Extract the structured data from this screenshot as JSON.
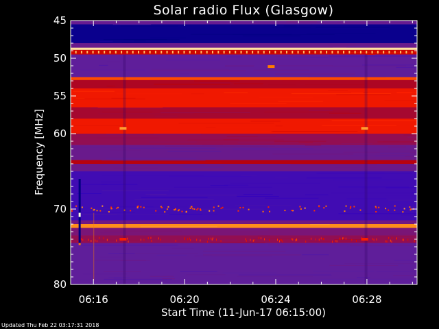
{
  "chart_data": {
    "type": "heatmap",
    "title": "Solar radio Flux (Glasgow)",
    "xlabel": "Start Time (11-Jun-17 06:15:00)",
    "ylabel": "Frequency [MHz]",
    "x_range_minutes": [
      0,
      15.2
    ],
    "ylim": [
      45,
      80
    ],
    "y_axis_inverted": true,
    "x_tick_labels": [
      "06:16",
      "06:20",
      "06:24",
      "06:28"
    ],
    "x_tick_minutes": [
      1,
      5,
      9,
      13
    ],
    "y_tick_labels": [
      "45",
      "50",
      "55",
      "60",
      "70",
      "80"
    ],
    "y_tick_values": [
      45,
      50,
      55,
      60,
      70,
      80
    ],
    "colormap": [
      "#000080",
      "#3000c0",
      "#5a1fa0",
      "#8a1060",
      "#c00000",
      "#ff2000",
      "#ff8000",
      "#ffe0a0"
    ],
    "bands": [
      {
        "from": 45.0,
        "to": 45.5,
        "level": 0.32
      },
      {
        "from": 45.5,
        "to": 48.0,
        "level": 0.03
      },
      {
        "from": 48.0,
        "to": 48.6,
        "level": 0.33
      },
      {
        "from": 48.6,
        "to": 48.9,
        "level": 1.0
      },
      {
        "from": 48.9,
        "to": 49.5,
        "level": 0.6
      },
      {
        "from": 49.5,
        "to": 52.5,
        "level": 0.3
      },
      {
        "from": 52.5,
        "to": 52.9,
        "level": 0.78
      },
      {
        "from": 52.9,
        "to": 54.0,
        "level": 0.52
      },
      {
        "from": 54.0,
        "to": 56.5,
        "level": 0.68
      },
      {
        "from": 56.5,
        "to": 58.0,
        "level": 0.5
      },
      {
        "from": 58.0,
        "to": 60.0,
        "level": 0.68
      },
      {
        "from": 60.0,
        "to": 61.5,
        "level": 0.45
      },
      {
        "from": 61.5,
        "to": 63.5,
        "level": 0.33
      },
      {
        "from": 63.5,
        "to": 64.0,
        "level": 0.55
      },
      {
        "from": 64.0,
        "to": 65.0,
        "level": 0.34
      },
      {
        "from": 65.0,
        "to": 71.5,
        "level": 0.2
      },
      {
        "from": 71.5,
        "to": 72.0,
        "level": 0.35
      },
      {
        "from": 72.0,
        "to": 72.5,
        "level": 0.88
      },
      {
        "from": 72.5,
        "to": 73.5,
        "level": 0.38
      },
      {
        "from": 73.5,
        "to": 74.5,
        "level": 0.45
      },
      {
        "from": 74.5,
        "to": 80.0,
        "level": 0.3
      }
    ],
    "features": [
      {
        "minute": 2.3,
        "freq": 59.3,
        "level": 0.9
      },
      {
        "minute": 12.9,
        "freq": 59.3,
        "level": 0.9
      },
      {
        "minute": 8.8,
        "freq": 51.1,
        "level": 0.85
      },
      {
        "minute": 2.3,
        "freq": 74.0,
        "level": 0.7
      },
      {
        "minute": 12.9,
        "freq": 74.0,
        "level": 0.7
      }
    ]
  },
  "footer": "Updated Thu Feb 22 03:17:31 2018"
}
